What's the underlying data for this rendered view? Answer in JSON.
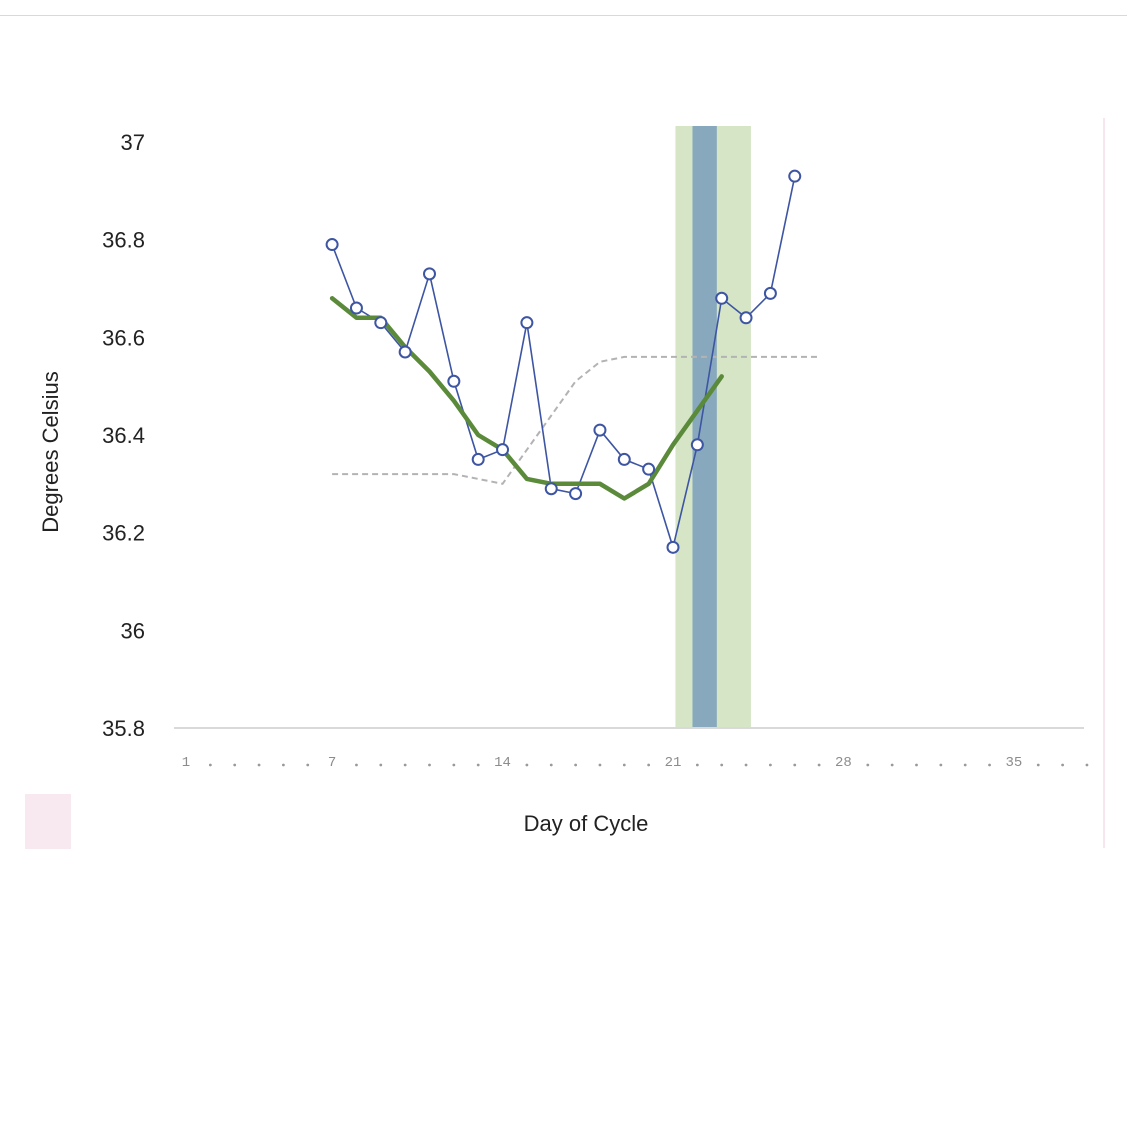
{
  "chart_data": {
    "type": "line",
    "xlabel": "Day of Cycle",
    "ylabel": "Degrees Celsius",
    "xlim": [
      1,
      38
    ],
    "ylim": [
      35.8,
      37
    ],
    "yticks": [
      {
        "value": 37,
        "label": "37"
      },
      {
        "value": 36.8,
        "label": "36.8"
      },
      {
        "value": 36.6,
        "label": "36.6"
      },
      {
        "value": 36.4,
        "label": "36.4"
      },
      {
        "value": 36.2,
        "label": "36.2"
      },
      {
        "value": 36,
        "label": "36"
      },
      {
        "value": 35.8,
        "label": "35.8"
      }
    ],
    "xtick_labels": [
      {
        "day": 1,
        "label": "1"
      },
      {
        "day": 7,
        "label": "7"
      },
      {
        "day": 14,
        "label": "14"
      },
      {
        "day": 21,
        "label": "21"
      },
      {
        "day": 28,
        "label": "28"
      },
      {
        "day": 35,
        "label": "35"
      }
    ],
    "bands": [
      {
        "x0": 21.1,
        "x1": 24.2,
        "color": "#d5e5c6"
      },
      {
        "x0": 21.8,
        "x1": 22.8,
        "color": "#88a9bd"
      }
    ],
    "series": [
      {
        "style": "markers",
        "color": "#3d55a2",
        "x": [
          7,
          8,
          9,
          10,
          11,
          12,
          13,
          14,
          15,
          16,
          17,
          18,
          19,
          20,
          21,
          22,
          23,
          24,
          25,
          26
        ],
        "y": [
          36.79,
          36.66,
          36.63,
          36.57,
          36.73,
          36.51,
          36.35,
          36.37,
          36.63,
          36.29,
          36.28,
          36.41,
          36.35,
          36.33,
          36.17,
          36.38,
          36.68,
          36.64,
          36.69,
          36.93
        ]
      },
      {
        "style": "smooth",
        "color": "#5a8a3a",
        "x": [
          7,
          8,
          9,
          10,
          11,
          12,
          13,
          14,
          15,
          16,
          17,
          18,
          19,
          20,
          21,
          22,
          23
        ],
        "y": [
          36.68,
          36.64,
          36.64,
          36.58,
          36.53,
          36.47,
          36.4,
          36.37,
          36.31,
          36.3,
          36.3,
          36.3,
          36.27,
          36.3,
          36.38,
          36.45,
          36.52
        ]
      },
      {
        "style": "dashed",
        "color": "#b3b3b3",
        "x": [
          7,
          12,
          14,
          15,
          16,
          17,
          18,
          19,
          27
        ],
        "y": [
          36.32,
          36.32,
          36.3,
          36.37,
          36.44,
          36.51,
          36.55,
          36.56,
          36.56
        ]
      }
    ]
  }
}
